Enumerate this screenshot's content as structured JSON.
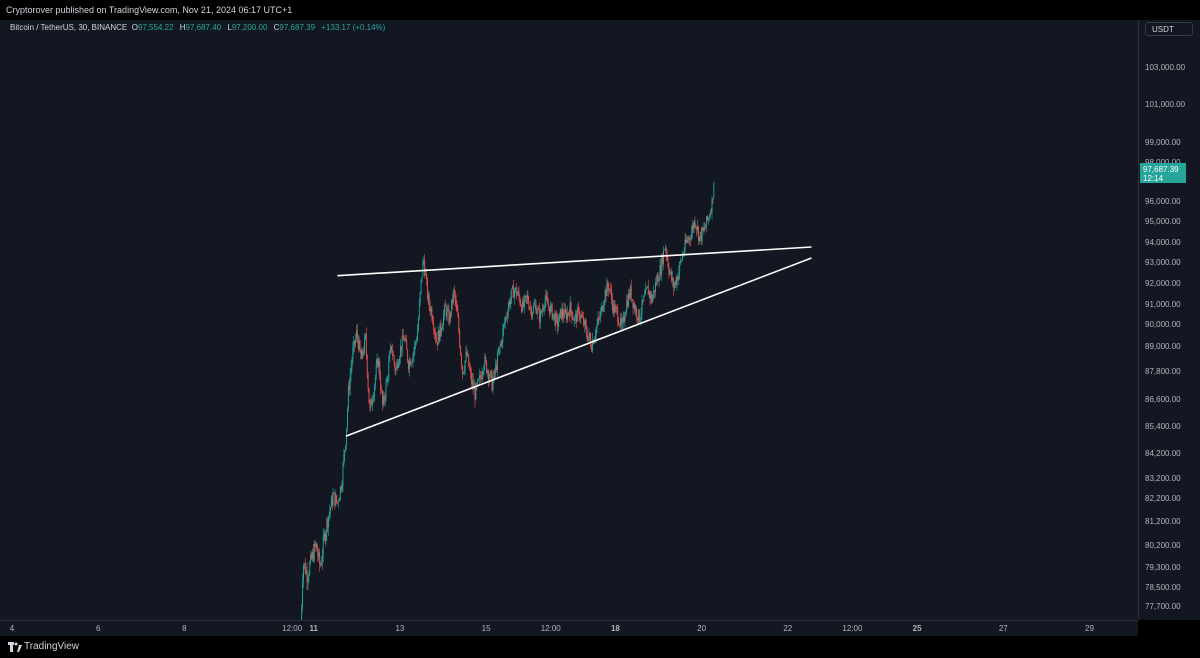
{
  "header": {
    "published": "Cryptorover published on TradingView.com, Nov 21, 2024 06:17 UTC+1"
  },
  "legend": {
    "symbol": "Bitcoin / TetherUS, 30, BINANCE",
    "open_label": "O",
    "open": "97,554.22",
    "high_label": "H",
    "high": "97,687.40",
    "low_label": "L",
    "low": "97,200.00",
    "close_label": "C",
    "close": "97,687.39",
    "change": "+133.17 (+0.14%)"
  },
  "currency": "USDT",
  "price_tag": {
    "price": "97,687.39",
    "countdown": "12:14"
  },
  "footer": {
    "brand": "TradingView"
  },
  "colors": {
    "up": "#26a69a",
    "down": "#ef5350",
    "background": "#131722",
    "trendline": "#ffffff"
  },
  "chart_data": {
    "type": "candlestick",
    "y_tick_labels": [
      "103,000.00",
      "101,000.00",
      "99,000.00",
      "98,000.00",
      "96,000.00",
      "95,000.00",
      "94,000.00",
      "93,000.00",
      "92,000.00",
      "91,000.00",
      "90,000.00",
      "89,000.00",
      "87,800.00",
      "86,600.00",
      "85,400.00",
      "84,200.00",
      "83,200.00",
      "82,200.00",
      "81,200.00",
      "80,200.00",
      "79,300.00",
      "78,500.00",
      "77,700.00"
    ],
    "y_tick_values": [
      103000,
      101000,
      99000,
      98000,
      96000,
      95000,
      94000,
      93000,
      92000,
      91000,
      90000,
      89000,
      87800,
      86600,
      85400,
      84200,
      83200,
      82200,
      81200,
      80200,
      79300,
      78500,
      77700
    ],
    "x_tick_labels": [
      "4",
      "6",
      "8",
      "12:00",
      "11",
      "13",
      "15",
      "12:00",
      "18",
      "20",
      "22",
      "12:00",
      "25",
      "27",
      "29"
    ],
    "x_tick_values": [
      4,
      6,
      8,
      10.5,
      11,
      13,
      15,
      16.5,
      18,
      20,
      22,
      23.5,
      25,
      27,
      29
    ],
    "x_axis_day_start": 4,
    "x_axis_day_end": 30,
    "price_path": [
      [
        10.7,
        76600
      ],
      [
        10.75,
        79500
      ],
      [
        10.85,
        79000
      ],
      [
        10.95,
        79600
      ],
      [
        11.05,
        80200
      ],
      [
        11.15,
        79300
      ],
      [
        11.25,
        80600
      ],
      [
        11.35,
        81500
      ],
      [
        11.45,
        82300
      ],
      [
        11.55,
        82000
      ],
      [
        11.65,
        83000
      ],
      [
        11.75,
        85000
      ],
      [
        11.8,
        86800
      ],
      [
        11.9,
        88600
      ],
      [
        12.0,
        89600
      ],
      [
        12.1,
        88300
      ],
      [
        12.2,
        89300
      ],
      [
        12.3,
        86000
      ],
      [
        12.4,
        87200
      ],
      [
        12.5,
        88400
      ],
      [
        12.6,
        86200
      ],
      [
        12.7,
        87400
      ],
      [
        12.8,
        89000
      ],
      [
        12.9,
        87800
      ],
      [
        13.0,
        88800
      ],
      [
        13.1,
        89400
      ],
      [
        13.2,
        88200
      ],
      [
        13.3,
        88600
      ],
      [
        13.4,
        89500
      ],
      [
        13.5,
        92200
      ],
      [
        13.55,
        93200
      ],
      [
        13.65,
        91200
      ],
      [
        13.75,
        90500
      ],
      [
        13.85,
        89200
      ],
      [
        13.95,
        89800
      ],
      [
        14.05,
        90800
      ],
      [
        14.15,
        90200
      ],
      [
        14.25,
        91600
      ],
      [
        14.35,
        90100
      ],
      [
        14.45,
        87800
      ],
      [
        14.55,
        88600
      ],
      [
        14.65,
        87400
      ],
      [
        14.75,
        86800
      ],
      [
        14.85,
        87400
      ],
      [
        14.95,
        88300
      ],
      [
        15.05,
        87800
      ],
      [
        15.15,
        87200
      ],
      [
        15.25,
        88200
      ],
      [
        15.35,
        89200
      ],
      [
        15.45,
        90300
      ],
      [
        15.55,
        91200
      ],
      [
        15.65,
        91700
      ],
      [
        15.75,
        91400
      ],
      [
        15.85,
        90800
      ],
      [
        15.95,
        91300
      ],
      [
        16.05,
        90700
      ],
      [
        16.15,
        90900
      ],
      [
        16.25,
        90300
      ],
      [
        16.35,
        91200
      ],
      [
        16.45,
        90900
      ],
      [
        16.55,
        90500
      ],
      [
        16.65,
        90000
      ],
      [
        16.75,
        90600
      ],
      [
        16.85,
        90400
      ],
      [
        16.95,
        90800
      ],
      [
        17.05,
        90200
      ],
      [
        17.15,
        90600
      ],
      [
        17.25,
        90100
      ],
      [
        17.35,
        89500
      ],
      [
        17.45,
        89100
      ],
      [
        17.55,
        89800
      ],
      [
        17.65,
        90400
      ],
      [
        17.75,
        91500
      ],
      [
        17.85,
        91900
      ],
      [
        17.95,
        90800
      ],
      [
        18.05,
        90500
      ],
      [
        18.15,
        89700
      ],
      [
        18.25,
        91000
      ],
      [
        18.35,
        91600
      ],
      [
        18.45,
        90800
      ],
      [
        18.55,
        90300
      ],
      [
        18.65,
        91100
      ],
      [
        18.75,
        91700
      ],
      [
        18.85,
        91200
      ],
      [
        18.95,
        92100
      ],
      [
        19.05,
        92700
      ],
      [
        19.15,
        93900
      ],
      [
        19.25,
        92600
      ],
      [
        19.35,
        91800
      ],
      [
        19.45,
        92400
      ],
      [
        19.55,
        93300
      ],
      [
        19.65,
        94000
      ],
      [
        19.75,
        94400
      ],
      [
        19.85,
        95100
      ],
      [
        19.95,
        94200
      ],
      [
        20.05,
        94500
      ],
      [
        20.15,
        95100
      ],
      [
        20.25,
        96000
      ],
      [
        20.3,
        97687
      ]
    ],
    "trendlines": [
      {
        "from": [
          11.55,
          92350
        ],
        "to": [
          22.55,
          93750
        ]
      },
      {
        "from": [
          11.75,
          84950
        ],
        "to": [
          22.55,
          93200
        ]
      }
    ],
    "last_price": 97687.39
  }
}
